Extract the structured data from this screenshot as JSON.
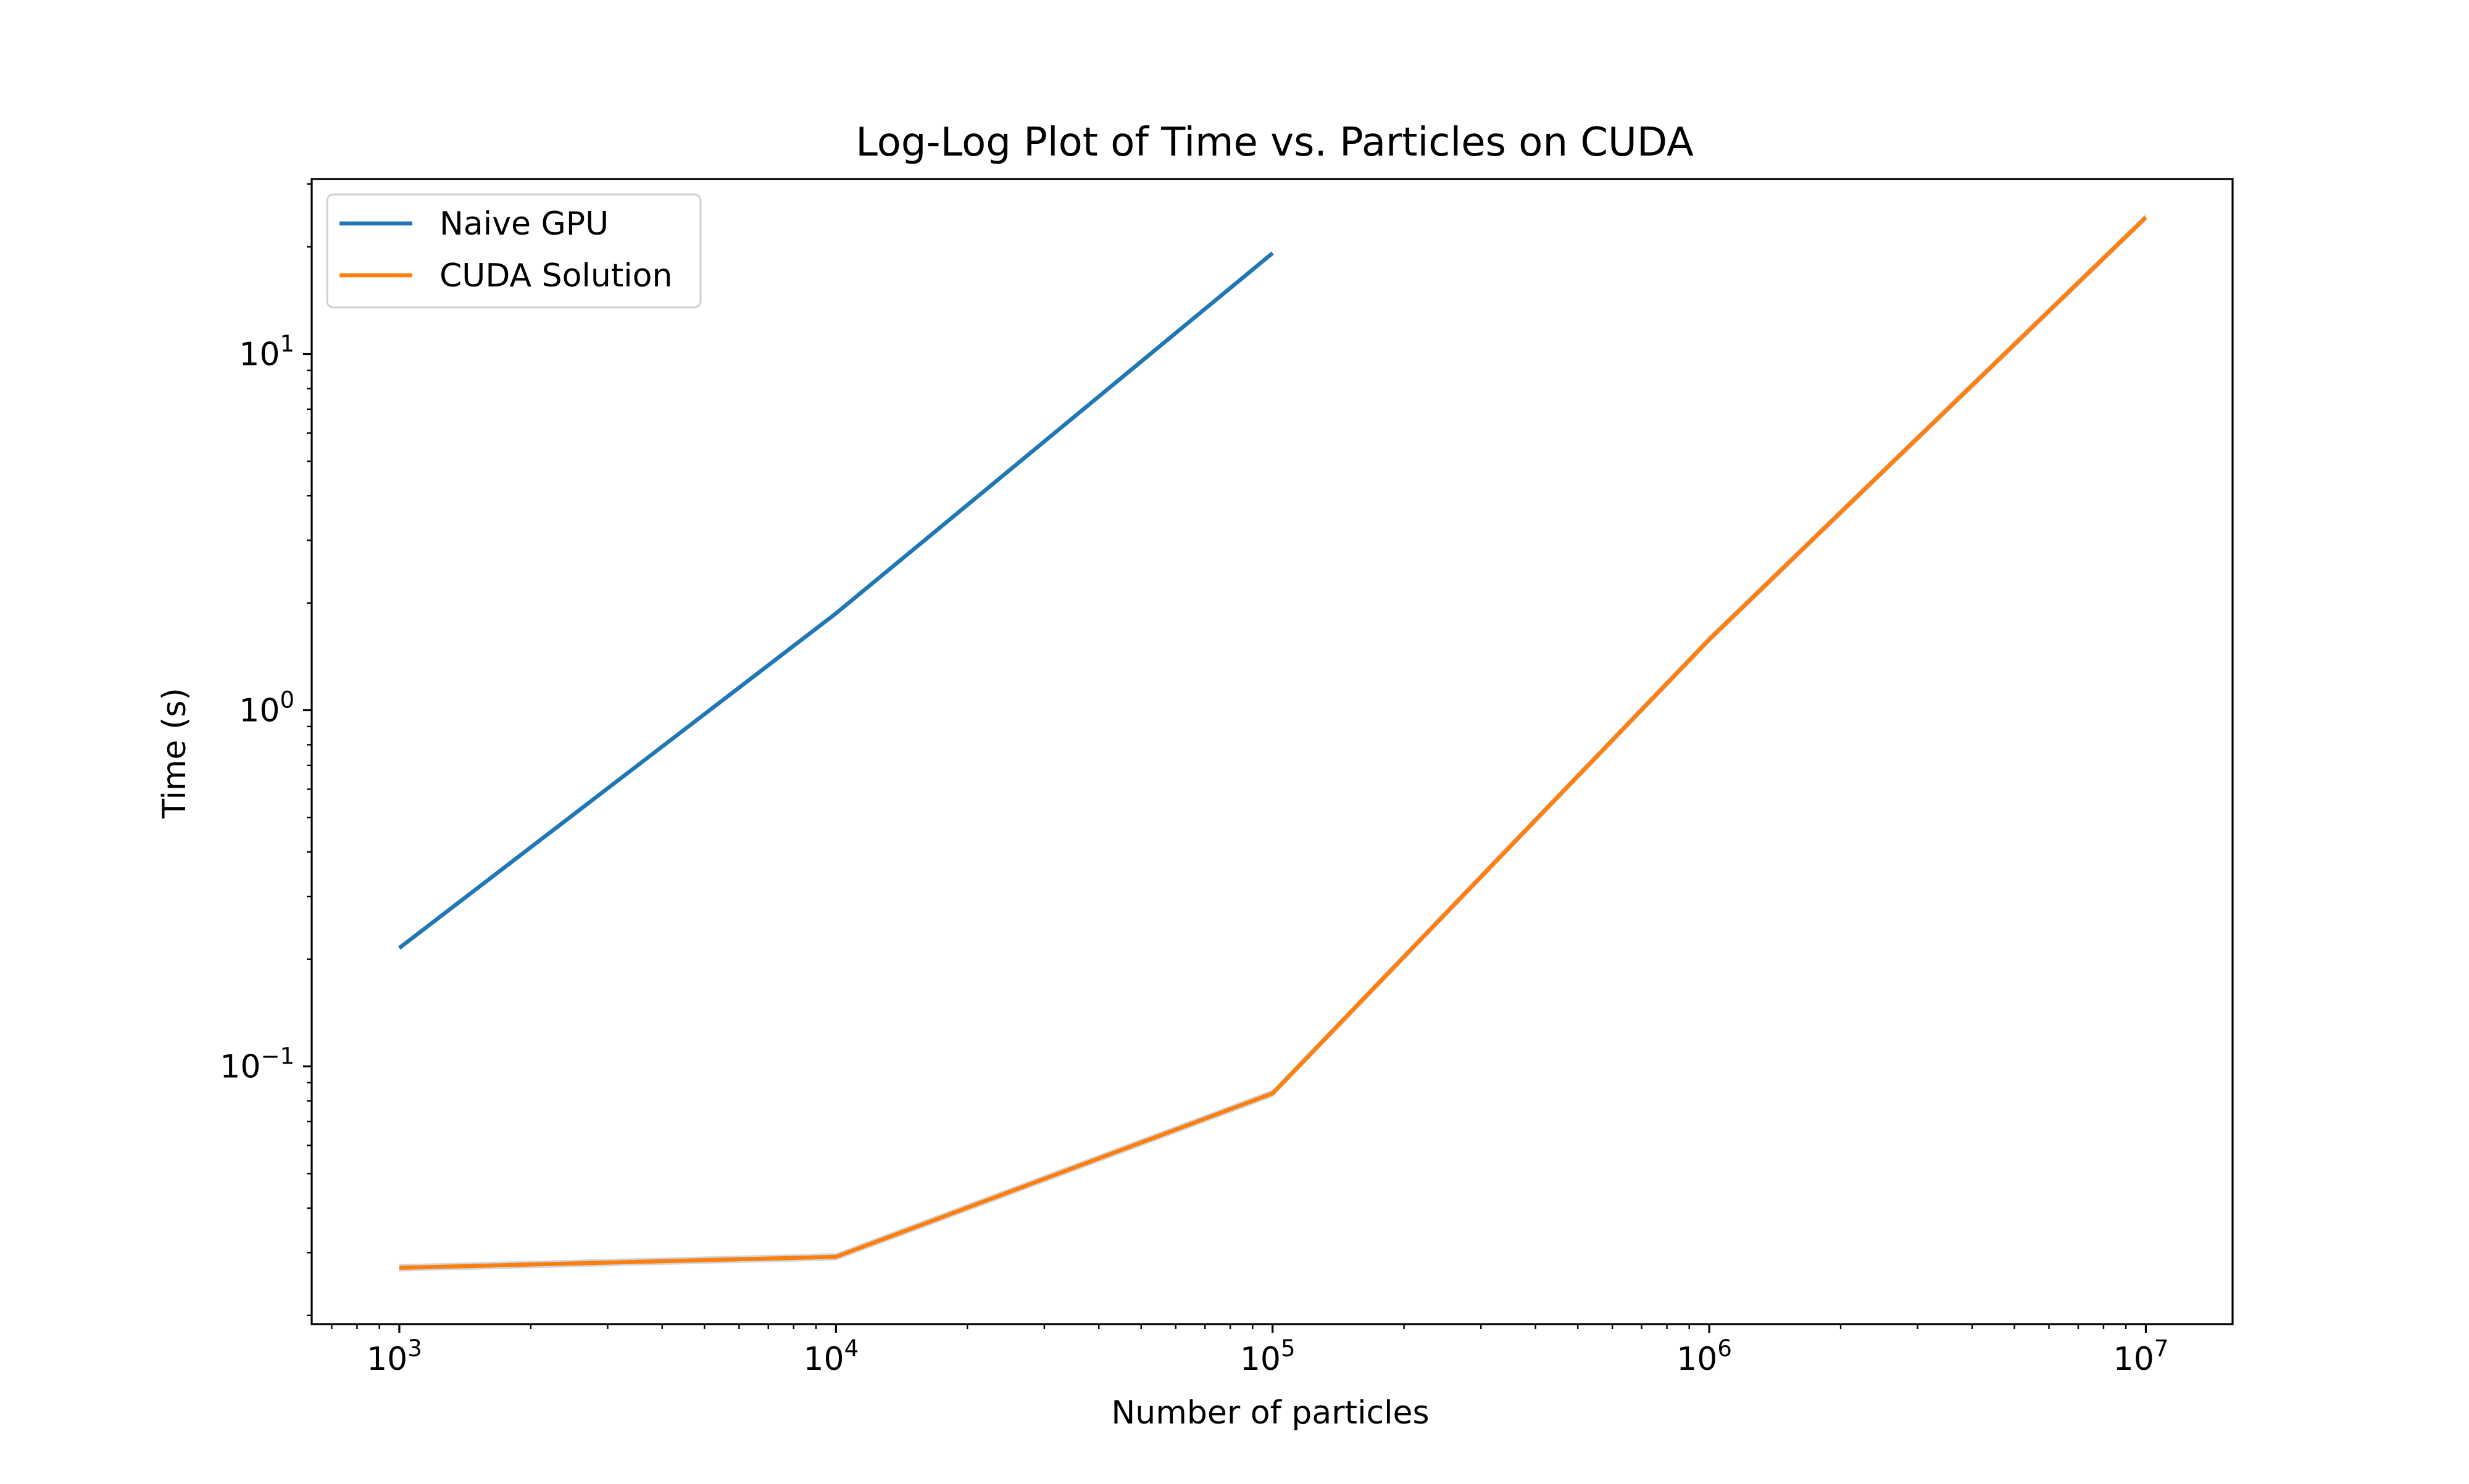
{
  "chart_data": {
    "type": "line",
    "title": "Log-Log Plot of Time vs. Particles on CUDA",
    "xlabel": "Number of particles",
    "ylabel": "Time (s)",
    "xscale": "log",
    "yscale": "log",
    "xlim": [
      630,
      15800000
    ],
    "ylim": [
      0.0189,
      31.0
    ],
    "grid": false,
    "legend_position": "top-left",
    "x_ticks": [
      {
        "base": "10",
        "exp": "3",
        "value": 1000
      },
      {
        "base": "10",
        "exp": "4",
        "value": 10000
      },
      {
        "base": "10",
        "exp": "5",
        "value": 100000
      },
      {
        "base": "10",
        "exp": "6",
        "value": 1000000
      },
      {
        "base": "10",
        "exp": "7",
        "value": 10000000
      }
    ],
    "y_ticks": [
      {
        "base": "10",
        "exp": "−1",
        "value": 0.1
      },
      {
        "base": "10",
        "exp": "0",
        "value": 1
      },
      {
        "base": "10",
        "exp": "1",
        "value": 10
      }
    ],
    "series": [
      {
        "name": "Naive GPU",
        "color": "#1f77b4",
        "x": [
          1000,
          10000,
          100000
        ],
        "y": [
          0.215,
          1.87,
          19.2
        ]
      },
      {
        "name": "CUDA Solution",
        "color": "#ff7f0e",
        "x": [
          1000,
          10000,
          100000,
          1000000,
          10000000
        ],
        "y": [
          0.0272,
          0.0292,
          0.084,
          1.58,
          24.2
        ],
        "band_color": "#c8cfd6"
      }
    ]
  }
}
